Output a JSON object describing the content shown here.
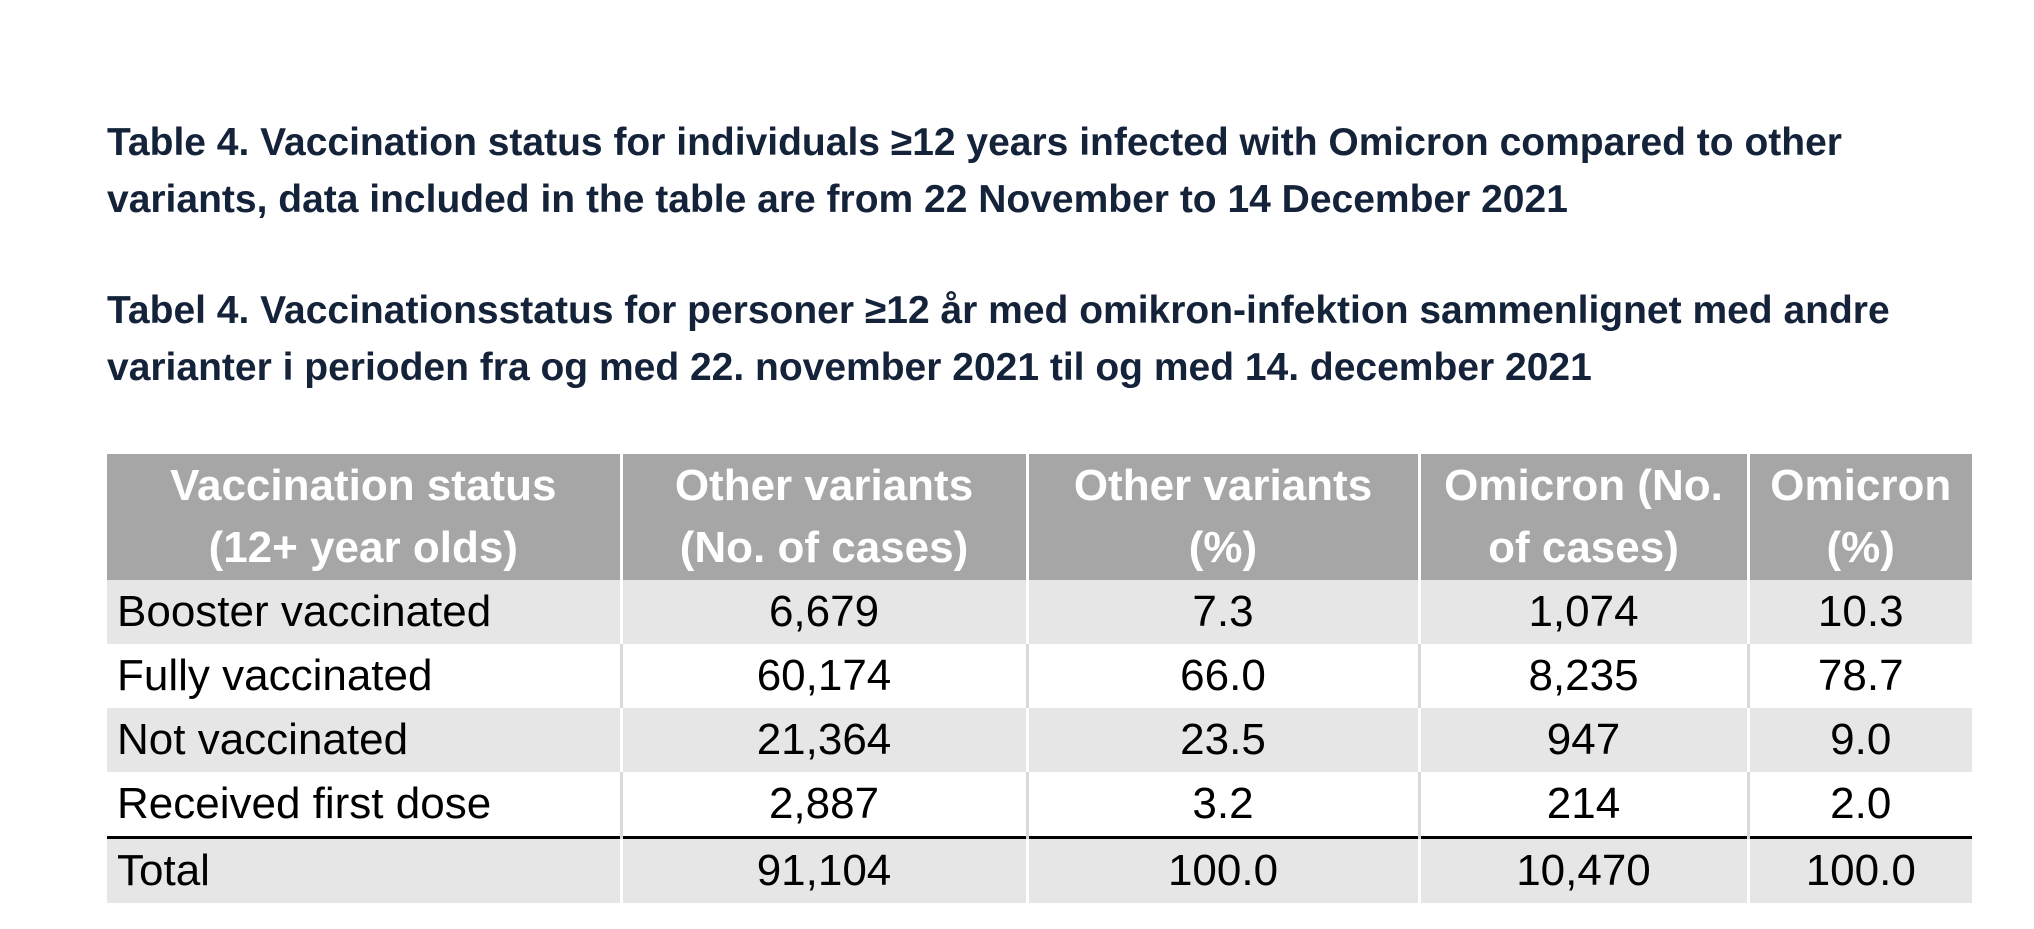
{
  "titles": {
    "english": "Table 4. Vaccination status for individuals ≥12 years infected with Omicron compared to other variants, data included in the table are from 22 November to 14 December 2021",
    "danish": "Tabel 4. Vaccinationsstatus for personer ≥12 år med omikron-infektion sammenlignet med andre varianter i perioden fra og med 22. november 2021 til og med 14. december 2021"
  },
  "table": {
    "header": [
      "Vaccination status\n(12+ year olds)",
      "Other variants\n(No. of cases)",
      "Other variants\n(%)",
      "Omicron (No.\nof cases)",
      "Omicron\n(%)"
    ],
    "rows": [
      [
        "Booster vaccinated",
        "6,679",
        "7.3",
        "1,074",
        "10.3"
      ],
      [
        "Fully vaccinated",
        "60,174",
        "66.0",
        "8,235",
        "78.7"
      ],
      [
        "Not vaccinated",
        "21,364",
        "23.5",
        "947",
        "9.0"
      ],
      [
        "Received first dose",
        "2,887",
        "3.2",
        "214",
        "2.0"
      ],
      [
        "Total",
        "91,104",
        "100.0",
        "10,470",
        "100.0"
      ]
    ]
  }
}
